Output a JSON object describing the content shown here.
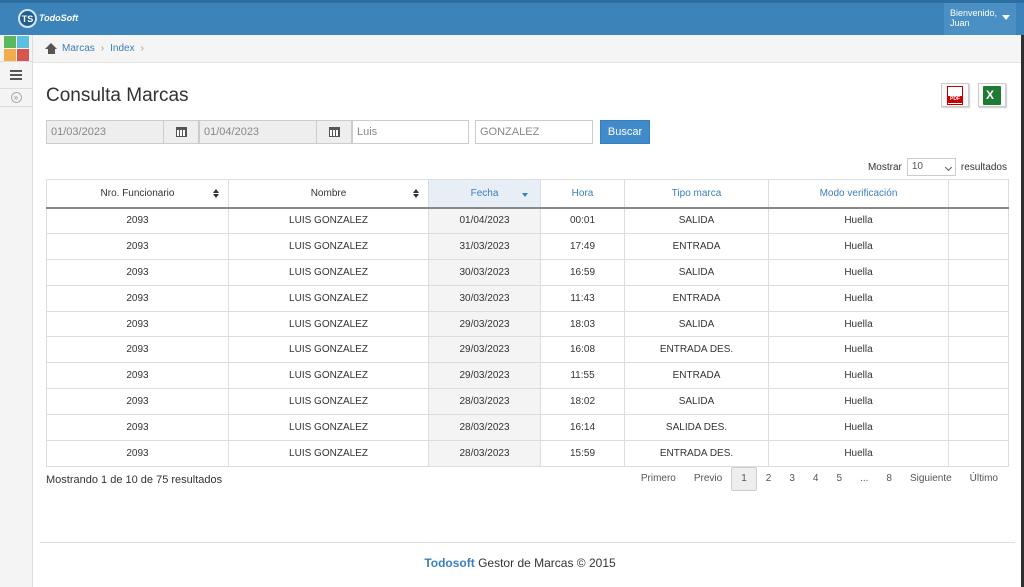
{
  "app": {
    "logo_initials": "TS",
    "logo_text": "TodoSoft",
    "greeting": "Bienvenido,",
    "user_name": "Juan",
    "colors": {
      "header": "#3b83b9",
      "accent": "#428bca",
      "link": "#3a7fb9"
    }
  },
  "breadcrumb": {
    "items": [
      "Marcas",
      "Index"
    ]
  },
  "page": {
    "title": "Consulta Marcas"
  },
  "export": {
    "pdf_icon": "pdf-icon",
    "excel_icon": "excel-icon"
  },
  "filters": {
    "date_from": "01/03/2023",
    "date_to": "01/04/2023",
    "first_name": "Luis",
    "last_name": "GONZALEZ",
    "search_label": "Buscar"
  },
  "page_size": {
    "prefix": "Mostrar",
    "value": "10",
    "suffix": "resultados"
  },
  "table": {
    "columns": [
      "Nro. Funcionario",
      "Nombre",
      "Fecha",
      "Hora",
      "Tipo marca",
      "Modo verificación",
      ""
    ],
    "rows": [
      [
        "2093",
        "LUIS GONZALEZ",
        "01/04/2023",
        "00:01",
        "SALIDA",
        "Huella",
        ""
      ],
      [
        "2093",
        "LUIS GONZALEZ",
        "31/03/2023",
        "17:49",
        "ENTRADA",
        "Huella",
        ""
      ],
      [
        "2093",
        "LUIS GONZALEZ",
        "30/03/2023",
        "16:59",
        "SALIDA",
        "Huella",
        ""
      ],
      [
        "2093",
        "LUIS GONZALEZ",
        "30/03/2023",
        "11:43",
        "ENTRADA",
        "Huella",
        ""
      ],
      [
        "2093",
        "LUIS GONZALEZ",
        "29/03/2023",
        "18:03",
        "SALIDA",
        "Huella",
        ""
      ],
      [
        "2093",
        "LUIS GONZALEZ",
        "29/03/2023",
        "16:08",
        "ENTRADA DES.",
        "Huella",
        ""
      ],
      [
        "2093",
        "LUIS GONZALEZ",
        "29/03/2023",
        "11:55",
        "ENTRADA",
        "Huella",
        ""
      ],
      [
        "2093",
        "LUIS GONZALEZ",
        "28/03/2023",
        "18:02",
        "SALIDA",
        "Huella",
        ""
      ],
      [
        "2093",
        "LUIS GONZALEZ",
        "28/03/2023",
        "16:14",
        "SALIDA DES.",
        "Huella",
        ""
      ],
      [
        "2093",
        "LUIS GONZALEZ",
        "28/03/2023",
        "15:59",
        "ENTRADA DES.",
        "Huella",
        ""
      ]
    ]
  },
  "summary": "Mostrando 1 de 10 de 75 resultados",
  "pagination": {
    "first": "Primero",
    "prev": "Previo",
    "pages": [
      "1",
      "2",
      "3",
      "4",
      "5",
      "...",
      "8"
    ],
    "current": "1",
    "next": "Siguiente",
    "last": "Último"
  },
  "footer": {
    "brand": "Todosoft",
    "text": "Gestor de Marcas © 2015"
  }
}
